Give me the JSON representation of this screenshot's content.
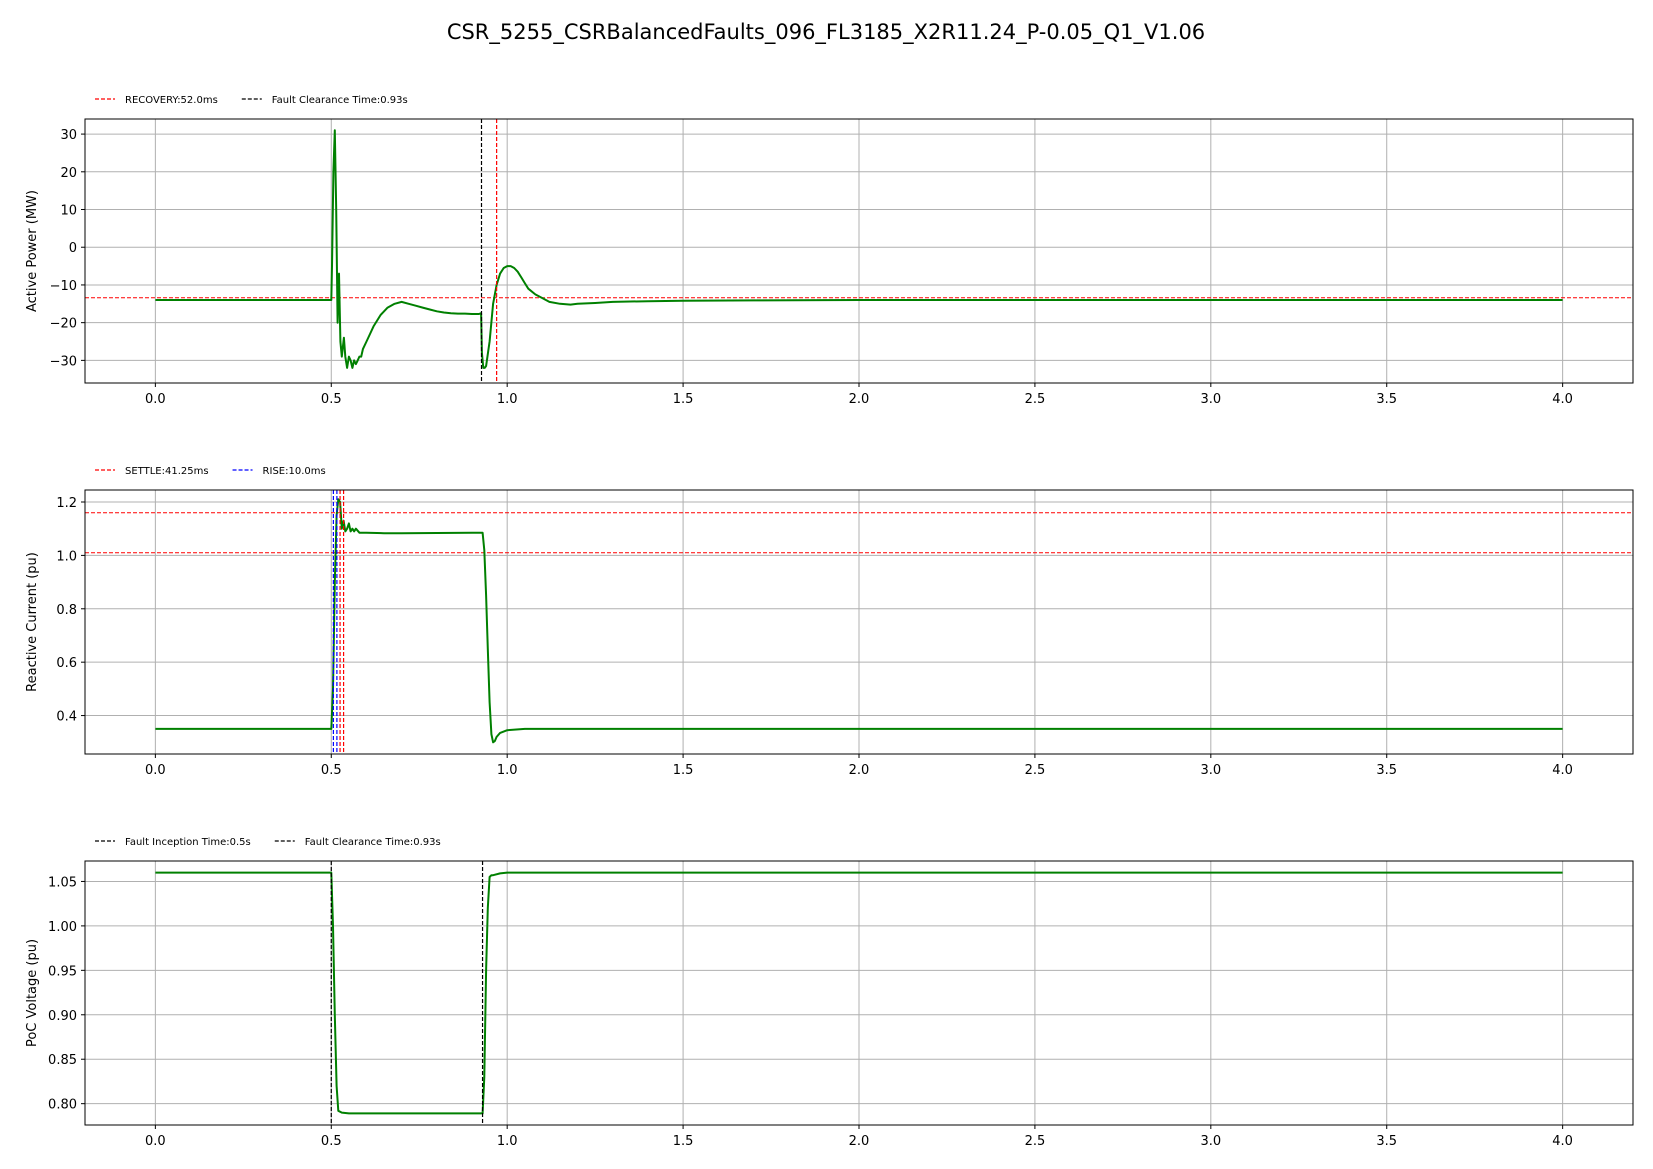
{
  "figure": {
    "title": "CSR_5255_CSRBalancedFaults_096_FL3185_X2R11.24_P-0.05_Q1_V1.06"
  },
  "colors": {
    "series": "#008000",
    "grid": "#b0b0b0",
    "red_line": "#ff0000",
    "blue_line": "#0000ff",
    "black_line": "#000000"
  },
  "chart_data": [
    {
      "type": "line",
      "ylabel": "Active Power (MW)",
      "xlim": [
        -0.2,
        4.2
      ],
      "ylim": [
        -36,
        34
      ],
      "xticks": [
        0.0,
        0.5,
        1.0,
        1.5,
        2.0,
        2.5,
        3.0,
        3.5,
        4.0
      ],
      "xtick_labels": [
        "0.0",
        "0.5",
        "1.0",
        "1.5",
        "2.0",
        "2.5",
        "3.0",
        "3.5",
        "4.0"
      ],
      "yticks": [
        -30,
        -20,
        -10,
        0,
        10,
        20,
        30
      ],
      "ytick_labels": [
        "−30",
        "−20",
        "−10",
        "0",
        "10",
        "20",
        "30"
      ],
      "grid": true,
      "legend": [
        {
          "label": "RECOVERY:52.0ms",
          "color": "#ff0000"
        },
        {
          "label": "Fault Clearance Time:0.93s",
          "color": "#000000"
        }
      ],
      "vlines": [
        {
          "x": 0.927,
          "color": "#000000"
        },
        {
          "x": 0.97,
          "color": "#ff0000"
        }
      ],
      "hlines": [
        {
          "y": -13.4,
          "color": "#ff0000"
        }
      ],
      "series": [
        {
          "x": [
            0,
            0.5,
            0.502,
            0.506,
            0.51,
            0.514,
            0.518,
            0.522,
            0.526,
            0.53,
            0.536,
            0.54,
            0.545,
            0.55,
            0.555,
            0.56,
            0.565,
            0.57,
            0.575,
            0.58,
            0.585,
            0.59,
            0.6,
            0.61,
            0.62,
            0.64,
            0.66,
            0.68,
            0.7,
            0.72,
            0.74,
            0.76,
            0.78,
            0.8,
            0.82,
            0.84,
            0.86,
            0.88,
            0.9,
            0.92,
            0.926,
            0.928,
            0.932,
            0.936,
            0.94,
            0.95,
            0.96,
            0.97,
            0.98,
            0.99,
            1.0,
            1.01,
            1.02,
            1.03,
            1.04,
            1.05,
            1.06,
            1.08,
            1.1,
            1.12,
            1.15,
            1.18,
            1.2,
            1.25,
            1.3,
            1.4,
            1.5,
            1.7,
            2.0,
            2.5,
            3.0,
            3.5,
            4.0
          ],
          "y": [
            -14,
            -14,
            -5,
            20,
            31,
            10,
            -20,
            -7,
            -25,
            -29,
            -24,
            -29,
            -32,
            -29,
            -30,
            -32,
            -30,
            -31,
            -30,
            -29,
            -29,
            -27,
            -25,
            -23,
            -21,
            -18,
            -16,
            -15,
            -14.5,
            -15,
            -15.5,
            -16,
            -16.5,
            -17,
            -17.3,
            -17.5,
            -17.6,
            -17.6,
            -17.7,
            -17.7,
            -17.5,
            -28,
            -32,
            -32,
            -31.5,
            -25,
            -15,
            -10,
            -7,
            -5.5,
            -5,
            -5,
            -5.5,
            -6.5,
            -8,
            -9.5,
            -11,
            -12.5,
            -13.5,
            -14.5,
            -15,
            -15.2,
            -15,
            -14.8,
            -14.5,
            -14.3,
            -14.2,
            -14.1,
            -14.0,
            -14.0,
            -14.0,
            -14.0,
            -14.0
          ]
        }
      ]
    },
    {
      "type": "line",
      "ylabel": "Reactive Current (pu)",
      "xlim": [
        -0.2,
        4.2
      ],
      "ylim": [
        0.256,
        1.245
      ],
      "xticks": [
        0.0,
        0.5,
        1.0,
        1.5,
        2.0,
        2.5,
        3.0,
        3.5,
        4.0
      ],
      "xtick_labels": [
        "0.0",
        "0.5",
        "1.0",
        "1.5",
        "2.0",
        "2.5",
        "3.0",
        "3.5",
        "4.0"
      ],
      "yticks": [
        0.4,
        0.6,
        0.8,
        1.0,
        1.2
      ],
      "ytick_labels": [
        "0.4",
        "0.6",
        "0.8",
        "1.0",
        "1.2"
      ],
      "grid": true,
      "legend": [
        {
          "label": "SETTLE:41.25ms",
          "color": "#ff0000"
        },
        {
          "label": "RISE:10.0ms",
          "color": "#0000ff"
        }
      ],
      "vlines": [
        {
          "x": 0.506,
          "color": "#0000ff"
        },
        {
          "x": 0.516,
          "color": "#0000ff"
        },
        {
          "x": 0.525,
          "color": "#ff0000"
        },
        {
          "x": 0.535,
          "color": "#ff0000"
        }
      ],
      "hlines": [
        {
          "y": 1.16,
          "color": "#ff0000"
        },
        {
          "y": 1.01,
          "color": "#ff0000"
        }
      ],
      "series": [
        {
          "x": [
            0,
            0.5,
            0.505,
            0.51,
            0.515,
            0.52,
            0.525,
            0.53,
            0.535,
            0.54,
            0.545,
            0.55,
            0.555,
            0.56,
            0.565,
            0.57,
            0.58,
            0.6,
            0.65,
            0.7,
            0.8,
            0.9,
            0.93,
            0.935,
            0.94,
            0.945,
            0.95,
            0.955,
            0.96,
            0.965,
            0.97,
            0.98,
            1.0,
            1.05,
            1.1,
            1.2,
            1.5,
            2.0,
            3.0,
            4.0
          ],
          "y": [
            0.35,
            0.35,
            0.5,
            0.9,
            1.15,
            1.21,
            1.2,
            1.1,
            1.13,
            1.09,
            1.1,
            1.12,
            1.09,
            1.1,
            1.09,
            1.1,
            1.085,
            1.085,
            1.083,
            1.083,
            1.084,
            1.085,
            1.085,
            1.02,
            0.85,
            0.65,
            0.45,
            0.33,
            0.3,
            0.305,
            0.32,
            0.335,
            0.345,
            0.35,
            0.35,
            0.35,
            0.35,
            0.35,
            0.35,
            0.35
          ]
        }
      ]
    },
    {
      "type": "line",
      "ylabel": "PoC Voltage (pu)",
      "xlim": [
        -0.2,
        4.2
      ],
      "ylim": [
        0.776,
        1.073
      ],
      "xticks": [
        0.0,
        0.5,
        1.0,
        1.5,
        2.0,
        2.5,
        3.0,
        3.5,
        4.0
      ],
      "xtick_labels": [
        "0.0",
        "0.5",
        "1.0",
        "1.5",
        "2.0",
        "2.5",
        "3.0",
        "3.5",
        "4.0"
      ],
      "yticks": [
        0.8,
        0.85,
        0.9,
        0.95,
        1.0,
        1.05
      ],
      "ytick_labels": [
        "0.80",
        "0.85",
        "0.90",
        "0.95",
        "1.00",
        "1.05"
      ],
      "grid": true,
      "legend": [
        {
          "label": "Fault Inception Time:0.5s",
          "color": "#000000"
        },
        {
          "label": "Fault Clearance Time:0.93s",
          "color": "#000000"
        }
      ],
      "vlines": [
        {
          "x": 0.5,
          "color": "#000000"
        },
        {
          "x": 0.93,
          "color": "#000000"
        }
      ],
      "hlines": [],
      "series": [
        {
          "x": [
            0,
            0.5,
            0.505,
            0.51,
            0.515,
            0.52,
            0.53,
            0.55,
            0.6,
            0.7,
            0.8,
            0.9,
            0.93,
            0.935,
            0.94,
            0.945,
            0.95,
            0.955,
            0.96,
            0.98,
            1.0,
            1.05,
            1.5,
            2.0,
            3.0,
            4.0
          ],
          "y": [
            1.06,
            1.06,
            1.0,
            0.9,
            0.82,
            0.792,
            0.79,
            0.789,
            0.789,
            0.789,
            0.789,
            0.789,
            0.789,
            0.83,
            0.95,
            1.02,
            1.055,
            1.057,
            1.057,
            1.059,
            1.06,
            1.06,
            1.06,
            1.06,
            1.06,
            1.06
          ]
        }
      ]
    }
  ]
}
